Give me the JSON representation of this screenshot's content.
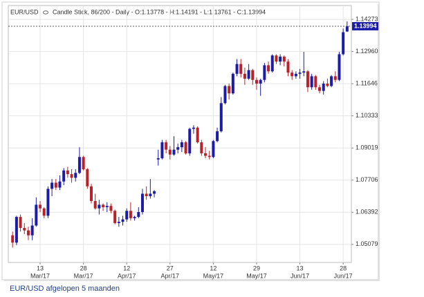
{
  "chart_data": {
    "type": "candlestick",
    "symbol": "EUR/USD",
    "info": "Candle Stick, 86/200 - Daily - O:1.13778 - H:1.14191 - L:1.13761 - C:1.13994",
    "caption": "EUR/USD afgelopen 5 maanden",
    "x": [
      "2017-03-02",
      "2017-03-03",
      "2017-03-06",
      "2017-03-07",
      "2017-03-08",
      "2017-03-09",
      "2017-03-10",
      "2017-03-13",
      "2017-03-14",
      "2017-03-15",
      "2017-03-16",
      "2017-03-17",
      "2017-03-20",
      "2017-03-21",
      "2017-03-22",
      "2017-03-23",
      "2017-03-24",
      "2017-03-27",
      "2017-03-28",
      "2017-03-29",
      "2017-03-30",
      "2017-03-31",
      "2017-04-03",
      "2017-04-04",
      "2017-04-05",
      "2017-04-06",
      "2017-04-07",
      "2017-04-10",
      "2017-04-11",
      "2017-04-12",
      "2017-04-13",
      "2017-04-14",
      "2017-04-17",
      "2017-04-18",
      "2017-04-19",
      "2017-04-20",
      "2017-04-21",
      "2017-04-24",
      "2017-04-25",
      "2017-04-26",
      "2017-04-27",
      "2017-04-28",
      "2017-05-01",
      "2017-05-02",
      "2017-05-03",
      "2017-05-04",
      "2017-05-05",
      "2017-05-08",
      "2017-05-09",
      "2017-05-10",
      "2017-05-11",
      "2017-05-12",
      "2017-05-15",
      "2017-05-16",
      "2017-05-17",
      "2017-05-18",
      "2017-05-19",
      "2017-05-22",
      "2017-05-23",
      "2017-05-24",
      "2017-05-25",
      "2017-05-26",
      "2017-05-29",
      "2017-05-30",
      "2017-05-31",
      "2017-06-01",
      "2017-06-02",
      "2017-06-05",
      "2017-06-06",
      "2017-06-07",
      "2017-06-08",
      "2017-06-09",
      "2017-06-12",
      "2017-06-13",
      "2017-06-14",
      "2017-06-15",
      "2017-06-16",
      "2017-06-19",
      "2017-06-20",
      "2017-06-21",
      "2017-06-22",
      "2017-06-23",
      "2017-06-26",
      "2017-06-27",
      "2017-06-28",
      "2017-06-29"
    ],
    "open": [
      1.0545,
      1.0515,
      1.062,
      1.0575,
      1.0565,
      1.0545,
      1.0585,
      1.067,
      1.0655,
      1.0625,
      1.0735,
      1.076,
      1.074,
      1.0765,
      1.081,
      1.0795,
      1.078,
      1.08,
      1.0865,
      1.0815,
      1.0745,
      1.0685,
      1.0655,
      1.067,
      1.066,
      1.0665,
      1.0645,
      1.0595,
      1.06,
      1.061,
      1.0645,
      1.0615,
      1.062,
      1.064,
      1.0715,
      1.0705,
      1.0715,
      1.0855,
      1.086,
      1.0925,
      1.0895,
      1.0875,
      1.0895,
      1.0905,
      1.0925,
      1.088,
      1.098,
      1.0985,
      1.0925,
      1.088,
      1.087,
      1.0865,
      1.093,
      1.097,
      1.1085,
      1.1155,
      1.1125,
      1.1205,
      1.1245,
      1.1205,
      1.1185,
      1.122,
      1.118,
      1.1165,
      1.118,
      1.124,
      1.1215,
      1.128,
      1.1255,
      1.1275,
      1.1255,
      1.121,
      1.1195,
      1.1205,
      1.121,
      1.1215,
      1.115,
      1.1195,
      1.115,
      1.1135,
      1.1165,
      1.1155,
      1.1195,
      1.118,
      1.1285,
      1.13778
    ],
    "high": [
      1.056,
      1.0625,
      1.063,
      1.0595,
      1.058,
      1.0615,
      1.07,
      1.0685,
      1.066,
      1.0745,
      1.0775,
      1.0775,
      1.079,
      1.082,
      1.0825,
      1.0815,
      1.0815,
      1.0905,
      1.087,
      1.082,
      1.0755,
      1.0715,
      1.069,
      1.0675,
      1.068,
      1.0675,
      1.065,
      1.062,
      1.0625,
      1.0655,
      1.068,
      1.0625,
      1.066,
      1.0735,
      1.0745,
      1.0775,
      1.073,
      1.0895,
      1.0935,
      1.0935,
      1.091,
      1.095,
      1.092,
      1.0935,
      1.093,
      1.0985,
      1.0995,
      1.099,
      1.0935,
      1.0905,
      1.089,
      1.0935,
      1.0985,
      1.111,
      1.116,
      1.1165,
      1.121,
      1.1265,
      1.1265,
      1.123,
      1.1245,
      1.1225,
      1.119,
      1.1185,
      1.125,
      1.1255,
      1.1285,
      1.1285,
      1.1285,
      1.128,
      1.1265,
      1.122,
      1.1215,
      1.1225,
      1.1295,
      1.122,
      1.1205,
      1.12,
      1.116,
      1.1175,
      1.1185,
      1.12,
      1.1215,
      1.1295,
      1.139,
      1.14191
    ],
    "low": [
      1.0495,
      1.0505,
      1.056,
      1.055,
      1.0525,
      1.0525,
      1.058,
      1.064,
      1.0615,
      1.0615,
      1.0705,
      1.073,
      1.073,
      1.075,
      1.078,
      1.076,
      1.0765,
      1.0795,
      1.081,
      1.0735,
      1.0675,
      1.065,
      1.063,
      1.0645,
      1.064,
      1.0635,
      1.059,
      1.058,
      1.0585,
      1.06,
      1.0605,
      1.0605,
      1.0615,
      1.063,
      1.069,
      1.0695,
      1.07,
      1.083,
      1.0855,
      1.088,
      1.0855,
      1.087,
      1.088,
      1.0885,
      1.0875,
      1.087,
      1.096,
      1.092,
      1.087,
      1.086,
      1.0855,
      1.086,
      1.0925,
      1.0965,
      1.108,
      1.11,
      1.112,
      1.1195,
      1.119,
      1.116,
      1.118,
      1.116,
      1.114,
      1.1115,
      1.117,
      1.1205,
      1.121,
      1.1245,
      1.124,
      1.1235,
      1.1195,
      1.118,
      1.1185,
      1.1185,
      1.1195,
      1.113,
      1.114,
      1.114,
      1.1125,
      1.112,
      1.115,
      1.115,
      1.117,
      1.1175,
      1.128,
      1.13761
    ],
    "close": [
      1.0515,
      1.062,
      1.0575,
      1.0565,
      1.0545,
      1.0585,
      1.067,
      1.0655,
      1.0625,
      1.0735,
      1.076,
      1.074,
      1.0765,
      1.081,
      1.0795,
      1.078,
      1.08,
      1.0865,
      1.0815,
      1.0745,
      1.0685,
      1.0655,
      1.067,
      1.066,
      1.0665,
      1.0645,
      1.0595,
      1.06,
      1.061,
      1.0645,
      1.0615,
      1.062,
      1.064,
      1.0715,
      1.0705,
      1.0715,
      1.0725,
      1.086,
      1.0925,
      1.0895,
      1.0875,
      1.0895,
      1.0905,
      1.0925,
      1.088,
      1.098,
      1.0985,
      1.0925,
      1.088,
      1.087,
      1.0865,
      1.093,
      1.097,
      1.1085,
      1.1155,
      1.1125,
      1.1205,
      1.1245,
      1.1205,
      1.1185,
      1.122,
      1.118,
      1.1165,
      1.118,
      1.124,
      1.1215,
      1.128,
      1.1255,
      1.1275,
      1.1255,
      1.121,
      1.1195,
      1.1205,
      1.121,
      1.1215,
      1.115,
      1.1195,
      1.115,
      1.1135,
      1.1165,
      1.1155,
      1.1195,
      1.118,
      1.1285,
      1.1375,
      1.13994
    ],
    "up_color": "#1c1ca8",
    "down_color": "#b8222a",
    "last_price": 1.13994,
    "ylim": [
      1.0434,
      1.1484
    ],
    "yticks": [
      1.05079,
      1.06392,
      1.07706,
      1.09019,
      1.10333,
      1.11646,
      {
        "value": 1.1296,
        "label": "1.12960"
      },
      1.14273
    ],
    "xticks": [
      {
        "value": "2017-03-13",
        "label": "13",
        "month": "Mar/17"
      },
      {
        "value": "2017-03-28",
        "label": "28",
        "month": "Mar/17"
      },
      {
        "value": "2017-04-12",
        "label": "12",
        "month": "Apr/17"
      },
      {
        "value": "2017-04-27",
        "label": "27",
        "month": "Apr/17"
      },
      {
        "value": "2017-05-12",
        "label": "12",
        "month": "May/17"
      },
      {
        "value": "2017-05-29",
        "label": "29",
        "month": "May/17"
      },
      {
        "value": "2017-06-13",
        "label": "13",
        "month": "Jun/17"
      },
      {
        "value": "2017-06-28",
        "label": "28",
        "month": "Jun/17"
      }
    ],
    "grid": true
  }
}
